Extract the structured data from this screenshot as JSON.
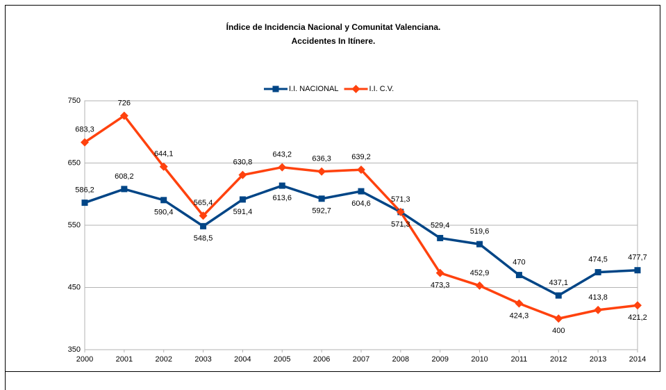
{
  "chart_data": {
    "type": "line",
    "title": "Índice de Incidencia Nacional y Comunitat Valenciana.",
    "subtitle": "Accidentes In Itínere.",
    "categories": [
      "2000",
      "2001",
      "2002",
      "2003",
      "2004",
      "2005",
      "2006",
      "2007",
      "2008",
      "2009",
      "2010",
      "2011",
      "2012",
      "2013",
      "2014"
    ],
    "series": [
      {
        "name": "I.I. NACIONAL",
        "color": "#004586",
        "marker": "square",
        "values": [
          586.2,
          608.2,
          590.4,
          548.5,
          591.4,
          613.6,
          592.7,
          604.6,
          571.3,
          529.4,
          519.6,
          470,
          437.1,
          474.5,
          477.7
        ],
        "value_labels": [
          "586,2",
          "608,2",
          "590,4",
          "548,5",
          "591,4",
          "613,6",
          "592,7",
          "604,6",
          "571,3",
          "529,4",
          "519,6",
          "470",
          "437,1",
          "474,5",
          "477,7"
        ]
      },
      {
        "name": "I.I. C.V.",
        "color": "#ff420e",
        "marker": "diamond",
        "values": [
          683.3,
          726,
          644.1,
          565.4,
          630.8,
          643.2,
          636.3,
          639.2,
          571.3,
          473.3,
          452.9,
          424.3,
          400,
          413.8,
          421.2
        ],
        "value_labels": [
          "683,3",
          "726",
          "644,1",
          "565,4",
          "630,8",
          "643,2",
          "636,3",
          "639,2",
          "571,3",
          "473,3",
          "452,9",
          "424,3",
          "400",
          "413,8",
          "421,2"
        ]
      }
    ],
    "ylim": [
      350,
      750
    ],
    "yticks": [
      350,
      450,
      550,
      650,
      750
    ],
    "grid": true,
    "legend": "top"
  }
}
